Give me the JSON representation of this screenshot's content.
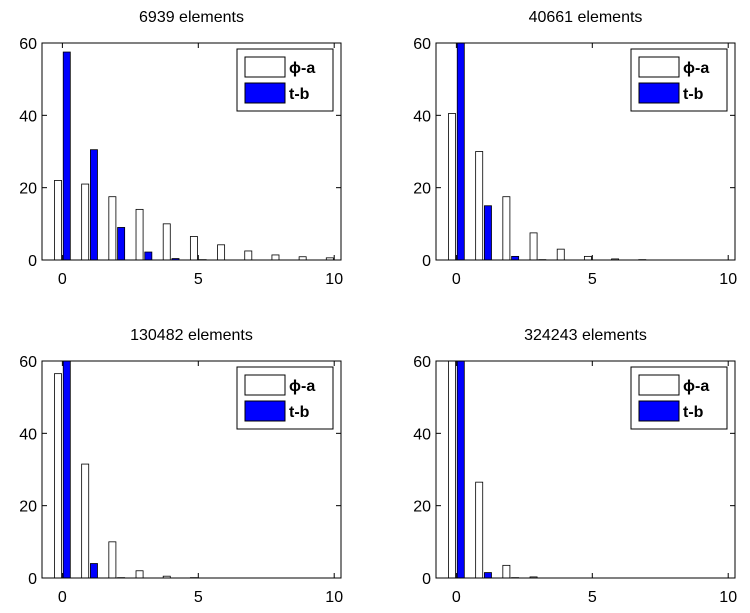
{
  "figure": {
    "legend_placement": "top-right",
    "legend_entries": [
      "ϕ-a",
      "t-b"
    ],
    "colors": {
      "phi_a": "#ffffff",
      "t_b": "#0000ff",
      "axis": "#000000"
    }
  },
  "chart_data": [
    {
      "type": "bar",
      "title": "6939 elements",
      "x": [
        0,
        1,
        2,
        3,
        4,
        5,
        6,
        7,
        8,
        9,
        10
      ],
      "xlim": [
        -0.75,
        10.25
      ],
      "ylim": [
        0,
        60
      ],
      "xticks": [
        0,
        5,
        10
      ],
      "yticks": [
        0,
        20,
        40,
        60
      ],
      "grid": false,
      "series": [
        {
          "name": "ϕ-a",
          "color": "#ffffff",
          "values": [
            22,
            21,
            17.5,
            14,
            10,
            6.5,
            4.2,
            2.5,
            1.4,
            0.9,
            0.6
          ]
        },
        {
          "name": "t-b",
          "color": "#0000ff",
          "values": [
            57.5,
            30.5,
            9,
            2.2,
            0.4,
            0.1,
            0,
            0,
            0,
            0,
            0
          ]
        }
      ]
    },
    {
      "type": "bar",
      "title": "40661 elements",
      "x": [
        0,
        1,
        2,
        3,
        4,
        5,
        6,
        7,
        8,
        9,
        10
      ],
      "xlim": [
        -0.75,
        10.25
      ],
      "ylim": [
        0,
        60
      ],
      "xticks": [
        0,
        5,
        10
      ],
      "yticks": [
        0,
        20,
        40,
        60
      ],
      "grid": false,
      "series": [
        {
          "name": "ϕ-a",
          "color": "#ffffff",
          "values": [
            40.5,
            30,
            17.5,
            7.5,
            3,
            1,
            0.3,
            0.1,
            0,
            0,
            0
          ]
        },
        {
          "name": "t-b",
          "color": "#0000ff",
          "values": [
            60,
            15,
            1,
            0.1,
            0,
            0,
            0,
            0,
            0,
            0,
            0
          ]
        }
      ]
    },
    {
      "type": "bar",
      "title": "130482 elements",
      "x": [
        0,
        1,
        2,
        3,
        4,
        5,
        6,
        7,
        8,
        9,
        10
      ],
      "xlim": [
        -0.75,
        10.25
      ],
      "ylim": [
        0,
        60
      ],
      "xticks": [
        0,
        5,
        10
      ],
      "yticks": [
        0,
        20,
        40,
        60
      ],
      "grid": false,
      "series": [
        {
          "name": "ϕ-a",
          "color": "#ffffff",
          "values": [
            56.5,
            31.5,
            10,
            2,
            0.5,
            0.1,
            0,
            0,
            0,
            0,
            0
          ]
        },
        {
          "name": "t-b",
          "color": "#0000ff",
          "values": [
            60,
            4,
            0.1,
            0,
            0,
            0,
            0,
            0,
            0,
            0,
            0
          ]
        }
      ]
    },
    {
      "type": "bar",
      "title": "324243 elements",
      "x": [
        0,
        1,
        2,
        3,
        4,
        5,
        6,
        7,
        8,
        9,
        10
      ],
      "xlim": [
        -0.75,
        10.25
      ],
      "ylim": [
        0,
        60
      ],
      "xticks": [
        0,
        5,
        10
      ],
      "yticks": [
        0,
        20,
        40,
        60
      ],
      "grid": false,
      "series": [
        {
          "name": "ϕ-a",
          "color": "#ffffff",
          "values": [
            60,
            26.5,
            3.5,
            0.3,
            0,
            0,
            0,
            0,
            0,
            0,
            0
          ]
        },
        {
          "name": "t-b",
          "color": "#0000ff",
          "values": [
            60,
            1.5,
            0.1,
            0,
            0,
            0,
            0,
            0,
            0,
            0,
            0
          ]
        }
      ]
    }
  ]
}
